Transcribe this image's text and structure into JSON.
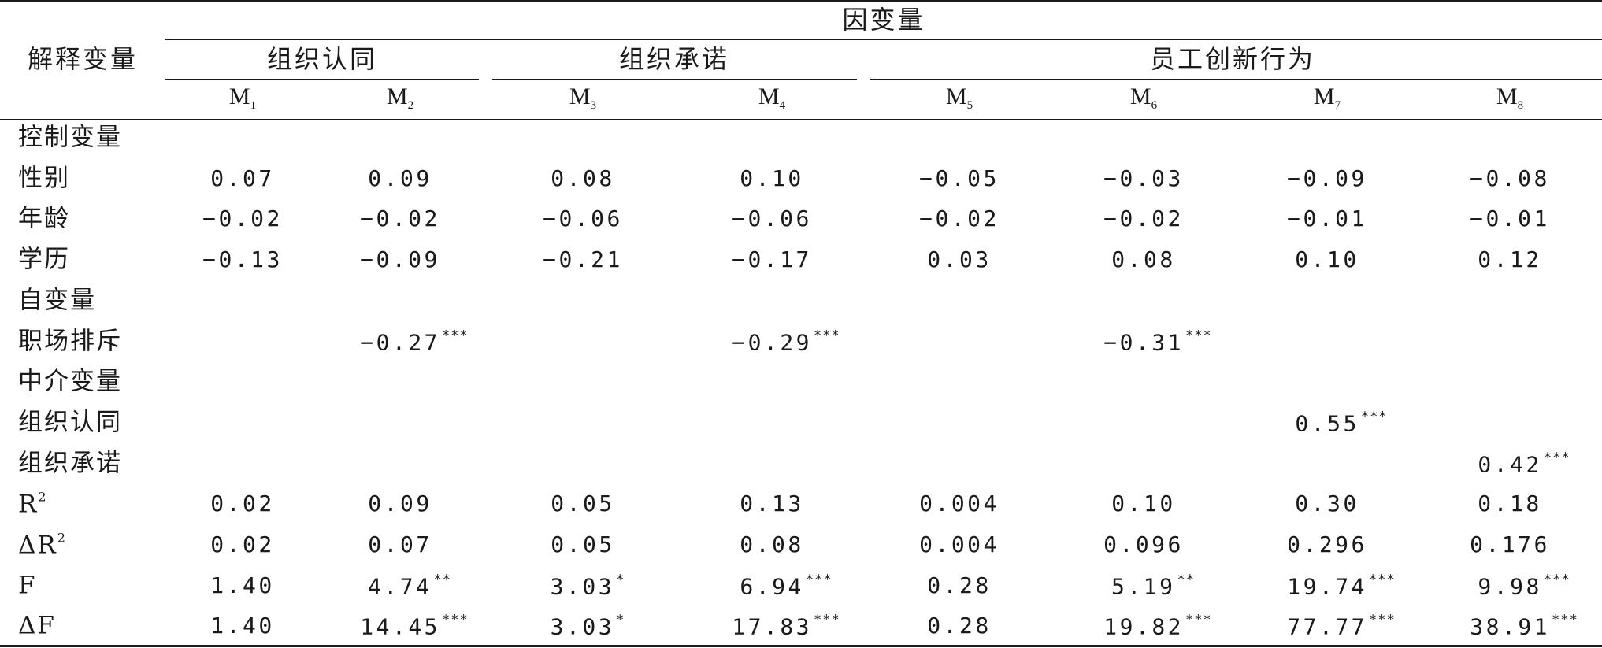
{
  "header": {
    "stub_label": "解释变量",
    "top_label": "因变量",
    "groups": [
      "组织认同",
      "组织承诺",
      "员工创新行为"
    ],
    "models": [
      {
        "name": "M",
        "sub": "1"
      },
      {
        "name": "M",
        "sub": "2"
      },
      {
        "name": "M",
        "sub": "3"
      },
      {
        "name": "M",
        "sub": "4"
      },
      {
        "name": "M",
        "sub": "5"
      },
      {
        "name": "M",
        "sub": "6"
      },
      {
        "name": "M",
        "sub": "7"
      },
      {
        "name": "M",
        "sub": "8"
      }
    ]
  },
  "rows": [
    {
      "label": "控制变量",
      "label_sup": "",
      "cells": [
        "",
        "",
        "",
        "",
        "",
        "",
        "",
        ""
      ],
      "sig": [
        "",
        "",
        "",
        "",
        "",
        "",
        "",
        ""
      ]
    },
    {
      "label": "性别",
      "label_sup": "",
      "cells": [
        "0.07",
        "0.09",
        "0.08",
        "0.10",
        "−0.05",
        "−0.03",
        "−0.09",
        "−0.08"
      ],
      "sig": [
        "",
        "",
        "",
        "",
        "",
        "",
        "",
        ""
      ]
    },
    {
      "label": "年龄",
      "label_sup": "",
      "cells": [
        "−0.02",
        "−0.02",
        "−0.06",
        "−0.06",
        "−0.02",
        "−0.02",
        "−0.01",
        "−0.01"
      ],
      "sig": [
        "",
        "",
        "",
        "",
        "",
        "",
        "",
        ""
      ]
    },
    {
      "label": "学历",
      "label_sup": "",
      "cells": [
        "−0.13",
        "−0.09",
        "−0.21",
        "−0.17",
        "0.03",
        "0.08",
        "0.10",
        "0.12"
      ],
      "sig": [
        "",
        "",
        "",
        "",
        "",
        "",
        "",
        ""
      ]
    },
    {
      "label": "自变量",
      "label_sup": "",
      "cells": [
        "",
        "",
        "",
        "",
        "",
        "",
        "",
        ""
      ],
      "sig": [
        "",
        "",
        "",
        "",
        "",
        "",
        "",
        ""
      ]
    },
    {
      "label": "职场排斥",
      "label_sup": "",
      "cells": [
        "",
        "−0.27",
        "",
        "−0.29",
        "",
        "−0.31",
        "",
        ""
      ],
      "sig": [
        "",
        "***",
        "",
        "***",
        "",
        "***",
        "",
        ""
      ]
    },
    {
      "label": "中介变量",
      "label_sup": "",
      "cells": [
        "",
        "",
        "",
        "",
        "",
        "",
        "",
        ""
      ],
      "sig": [
        "",
        "",
        "",
        "",
        "",
        "",
        "",
        ""
      ]
    },
    {
      "label": "组织认同",
      "label_sup": "",
      "cells": [
        "",
        "",
        "",
        "",
        "",
        "",
        "0.55",
        ""
      ],
      "sig": [
        "",
        "",
        "",
        "",
        "",
        "",
        "***",
        ""
      ]
    },
    {
      "label": "组织承诺",
      "label_sup": "",
      "cells": [
        "",
        "",
        "",
        "",
        "",
        "",
        "",
        "0.42"
      ],
      "sig": [
        "",
        "",
        "",
        "",
        "",
        "",
        "",
        "***"
      ]
    },
    {
      "label": "R",
      "label_sup": "2",
      "cells": [
        "0.02",
        "0.09",
        "0.05",
        "0.13",
        "0.004",
        "0.10",
        "0.30",
        "0.18"
      ],
      "sig": [
        "",
        "",
        "",
        "",
        "",
        "",
        "",
        ""
      ]
    },
    {
      "label": "ΔR",
      "label_sup": "2",
      "cells": [
        "0.02",
        "0.07",
        "0.05",
        "0.08",
        "0.004",
        "0.096",
        "0.296",
        "0.176"
      ],
      "sig": [
        "",
        "",
        "",
        "",
        "",
        "",
        "",
        ""
      ]
    },
    {
      "label": "F",
      "label_sup": "",
      "cells": [
        "1.40",
        "4.74",
        "3.03",
        "6.94",
        "0.28",
        "5.19",
        "19.74",
        "9.98"
      ],
      "sig": [
        "",
        "**",
        "*",
        "***",
        "",
        "**",
        "***",
        "***"
      ]
    },
    {
      "label": "ΔF",
      "label_sup": "",
      "cells": [
        "1.40",
        "14.45",
        "3.03",
        "17.83",
        "0.28",
        "19.82",
        "77.77",
        "38.91"
      ],
      "sig": [
        "",
        "***",
        "*",
        "***",
        "",
        "***",
        "***",
        "***"
      ]
    }
  ]
}
